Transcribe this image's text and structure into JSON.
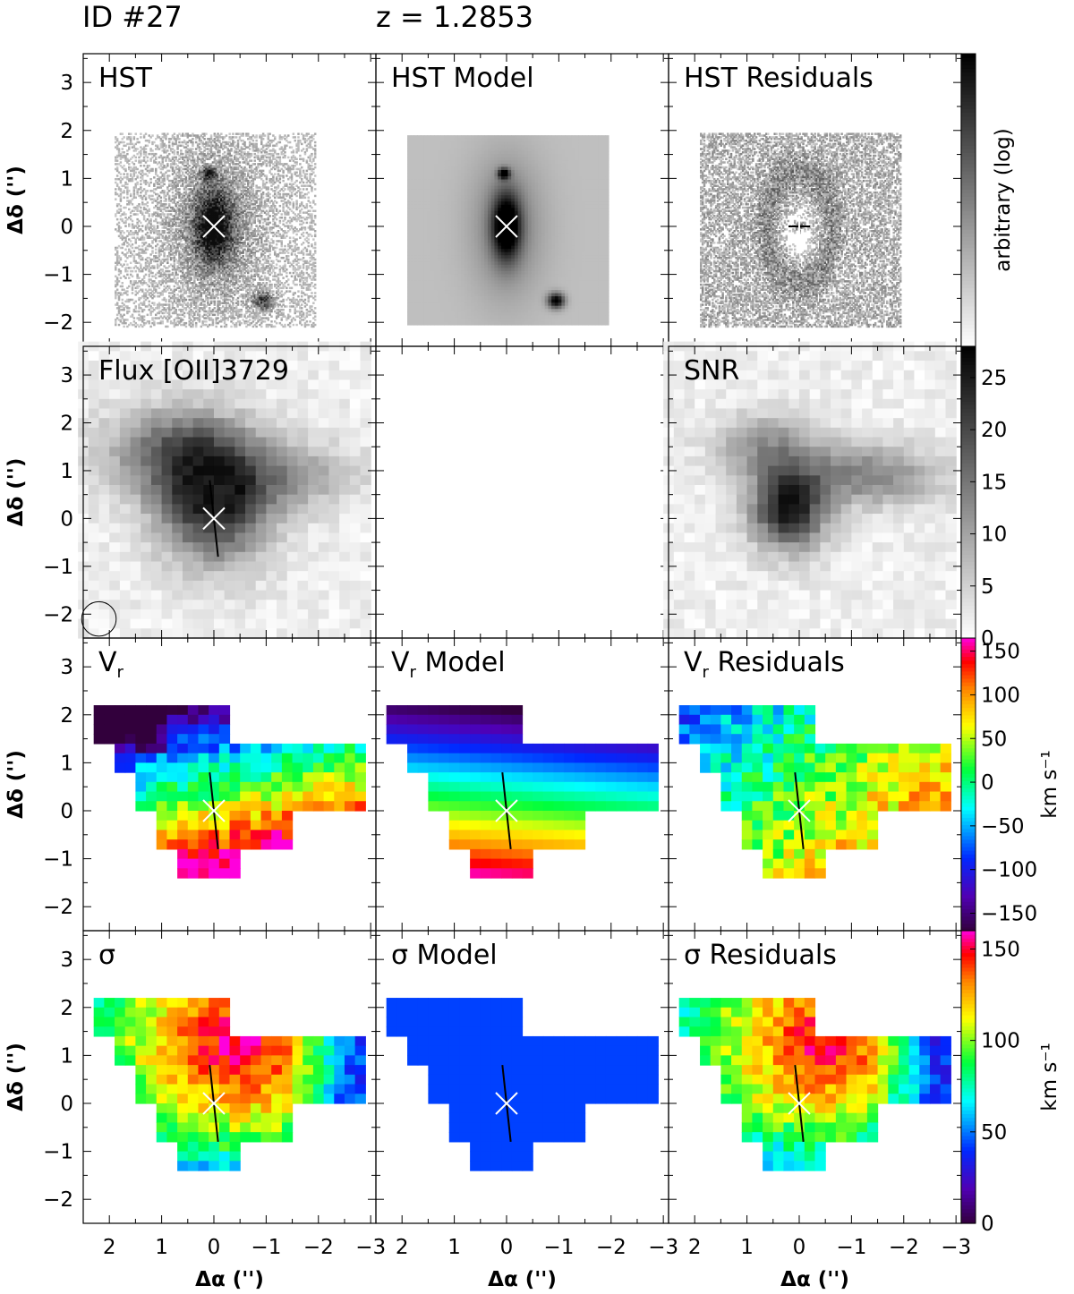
{
  "header": {
    "id_label": "ID #27",
    "redshift_label": "z = 1.2853"
  },
  "chart_data": {
    "type": "heatmap",
    "axes": {
      "xlabel": "Δα ('')",
      "ylabel": "Δδ ('')",
      "xlim": [
        2.5,
        -3.1
      ],
      "ylim": [
        -2.5,
        3.6
      ],
      "xticks": [
        2,
        1,
        0,
        -1,
        -2,
        -3
      ],
      "yticks": [
        -2,
        -1,
        0,
        1,
        2,
        3
      ],
      "xtick_labels": [
        "2",
        "1",
        "0",
        "−1",
        "−2",
        "−3"
      ],
      "ytick_labels": [
        "−2",
        "−1",
        "0",
        "1",
        "2",
        "3"
      ]
    },
    "panels": [
      {
        "id": "hst",
        "title": "HST",
        "kind": "hst",
        "row": 0,
        "col": 0
      },
      {
        "id": "hst-model",
        "title": "HST Model",
        "kind": "hstmodel",
        "row": 0,
        "col": 1
      },
      {
        "id": "hst-resid",
        "title": "HST Residuals",
        "kind": "hstresid",
        "row": 0,
        "col": 2
      },
      {
        "id": "flux",
        "title": "Flux [OII]3729",
        "kind": "flux",
        "row": 1,
        "col": 0
      },
      {
        "id": "empty",
        "title": "",
        "kind": "empty",
        "row": 1,
        "col": 1
      },
      {
        "id": "snr",
        "title": "SNR",
        "kind": "snr",
        "row": 1,
        "col": 2
      },
      {
        "id": "vr",
        "title_main": "V",
        "title_sub": "r",
        "title_rest": "",
        "kind": "vr",
        "row": 2,
        "col": 0
      },
      {
        "id": "vr-model",
        "title_main": "V",
        "title_sub": "r",
        "title_rest": " Model",
        "kind": "vrmodel",
        "row": 2,
        "col": 1
      },
      {
        "id": "vr-resid",
        "title_main": "V",
        "title_sub": "r",
        "title_rest": " Residuals",
        "kind": "vrresid",
        "row": 2,
        "col": 2
      },
      {
        "id": "sigma",
        "title": "σ",
        "kind": "sig",
        "row": 3,
        "col": 0
      },
      {
        "id": "sigma-model",
        "title": "σ  Model",
        "kind": "sigmodel",
        "row": 3,
        "col": 1
      },
      {
        "id": "sigma-resid",
        "title": "σ  Residuals",
        "kind": "sigresid",
        "row": 3,
        "col": 2
      }
    ],
    "colorbars": [
      {
        "id": "hst-cbar",
        "row": 0,
        "cmap": "gray",
        "label": "arbitrary (log)",
        "ticks": [],
        "tick_labels": []
      },
      {
        "id": "snr-cbar",
        "row": 1,
        "cmap": "gray",
        "range": [
          0,
          28
        ],
        "ticks": [
          0,
          5,
          10,
          15,
          20,
          25
        ],
        "tick_labels": [
          "0",
          "5",
          "10",
          "15",
          "20",
          "25"
        ],
        "label": ""
      },
      {
        "id": "vr-cbar",
        "row": 2,
        "cmap": "rainbow",
        "range": [
          -170,
          165
        ],
        "ticks": [
          -150,
          -100,
          -50,
          0,
          50,
          100,
          150
        ],
        "tick_labels": [
          "−150",
          "−100",
          "−50",
          "0",
          "50",
          "100",
          "150"
        ],
        "label": "km s⁻¹"
      },
      {
        "id": "sigma-cbar",
        "row": 3,
        "cmap": "rainbow",
        "range": [
          0,
          160
        ],
        "ticks": [
          0,
          50,
          100,
          150
        ],
        "tick_labels": [
          "0",
          "50",
          "100",
          "150"
        ],
        "label": "km s⁻¹"
      }
    ],
    "annotations": {
      "center_marker": {
        "x": 0,
        "y": 0,
        "symbol": "×"
      },
      "major_axis": {
        "x0": 0.08,
        "y0": 0.8,
        "x1": -0.08,
        "y1": -0.8
      },
      "beam_circle": {
        "x": 2.2,
        "y": -2.1,
        "radius": 0.33,
        "panel": "flux"
      },
      "companions": [
        {
          "x": 0.1,
          "y": 1.1
        },
        {
          "x": -0.95,
          "y": -1.55
        }
      ]
    }
  }
}
